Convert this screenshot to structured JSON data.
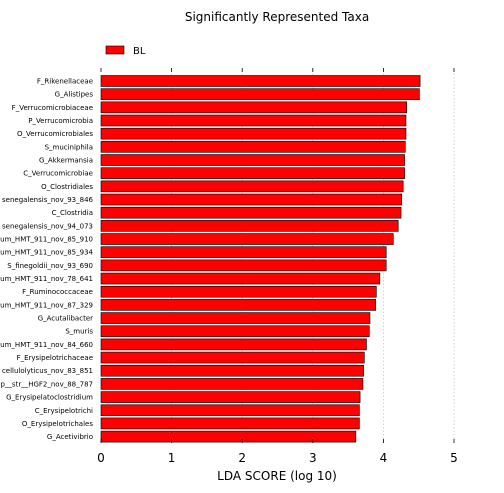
{
  "chart_data": {
    "type": "bar",
    "orientation": "horizontal",
    "title": "Significantly Represented Taxa",
    "xlabel": "LDA SCORE (log 10)",
    "ylabel": "",
    "xlim": [
      0,
      5
    ],
    "xticks": [
      "0",
      "1",
      "2",
      "3",
      "4",
      "5"
    ],
    "grid": "vertical dotted",
    "legend_position": "top-left",
    "series": [
      {
        "name": "BL",
        "color": "#ff0000"
      }
    ],
    "categories": [
      "F_Rikenellaceae",
      "G_Alistipes",
      "F_Verrucomicrobiaceae",
      "P_Verrucomicrobia",
      "O_Verrucomicrobiales",
      "S_muciniphila",
      "G_Akkermansia",
      "C_Verrucomicrobiae",
      "O_Clostridiales",
      "senegalensis_nov_93_846",
      "C_Clostridia",
      "senegalensis_nov_94_073",
      "um_HMT_911_nov_85_910",
      "um_HMT_911_nov_85_934",
      "S_finegoldii_nov_93_690",
      "um_HMT_911_nov_78_641",
      "F_Ruminococcaceae",
      "um_HMT_911_nov_87_329",
      "G_Acutalibacter",
      "S_muris",
      "um_HMT_911_nov_84_660",
      "F_Erysipelotrichaceae",
      "cellulolyticus_nov_83_851",
      "p__str__HGF2_nov_88_787",
      "G_Erysipelatoclostridium",
      "C_Erysipelotrichi",
      "O_Erysipelotrichales",
      "G_Acetivibrio"
    ],
    "values": [
      4.52,
      4.51,
      4.33,
      4.32,
      4.32,
      4.31,
      4.3,
      4.3,
      4.28,
      4.26,
      4.25,
      4.21,
      4.14,
      4.04,
      4.04,
      3.95,
      3.9,
      3.89,
      3.81,
      3.8,
      3.76,
      3.73,
      3.72,
      3.71,
      3.67,
      3.66,
      3.66,
      3.61
    ]
  }
}
